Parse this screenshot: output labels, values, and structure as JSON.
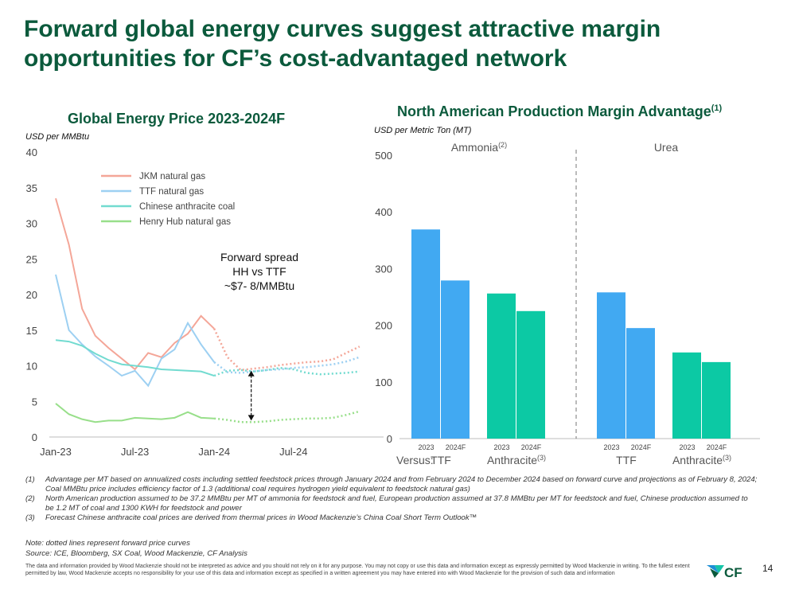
{
  "slide": {
    "title": "Forward global energy curves suggest attractive margin opportunities for CF’s cost-advantaged network",
    "page_number": "14",
    "brand": "CF",
    "colors": {
      "title_green": "#0b5a3c",
      "blue_bar": "#41a9f2",
      "teal_bar": "#0cc9a4",
      "logo_green": "#0b5a3c",
      "logo_blue": "#1d8fd6",
      "logo_teal": "#16c5a8"
    }
  },
  "footnotes": [
    {
      "num": "(1)",
      "text": "Advantage per MT based on annualized costs including settled feedstock prices through January 2024 and from February 2024 to December 2024 based on forward curve and projections as of February 8, 2024; Coal MMBtu price includes efficiency factor of 1.3 (additional coal requires hydrogen yield equivalent to feedstock natural gas)"
    },
    {
      "num": "(2)",
      "text": "North American production assumed to be 37.2 MMBtu per MT of ammonia for feedstock and fuel, European production assumed at 37.8 MMBtu per MT for feedstock and fuel, Chinese production assumed to be 1.2 MT of coal and 1300 KWH for feedstock and power"
    },
    {
      "num": "(3)",
      "text": "Forecast Chinese anthracite coal prices are derived from thermal prices in Wood Mackenzie’s China Coal Short Term Outlook™"
    }
  ],
  "notes": {
    "dotted": "Note: dotted lines represent forward price curves",
    "source": "Source: ICE, Bloomberg, SX Coal, Wood Mackenzie, CF Analysis"
  },
  "disclaimer": "The data and information provided by Wood Mackenzie should not be interpreted as advice and you should not rely on it for any purpose. You may not copy or use this data and information except as expressly permitted by Wood Mackenzie in writing. To the fullest extent permitted by law, Wood Mackenzie accepts no responsibility for your use of this data and information except as specified in a written agreement you may have entered into with Wood Mackenzie for the provision of such data and information",
  "chart_data": [
    {
      "type": "line",
      "title": "Global Energy Price 2023-2024F",
      "ylabel": "USD per MMBtu",
      "ylim": [
        0,
        40
      ],
      "yticks": [
        "0",
        "5",
        "10",
        "15",
        "20",
        "25",
        "30",
        "35",
        "40"
      ],
      "x_tick_labels": [
        {
          "label": "Jan-23",
          "index": 0
        },
        {
          "label": "Jul-23",
          "index": 6
        },
        {
          "label": "Jan-24",
          "index": 12
        },
        {
          "label": "Jul-24",
          "index": 18
        }
      ],
      "months": 24,
      "actual_through_index": 12,
      "series": [
        {
          "name": "JKM natural gas",
          "color": "#f4a698",
          "values": [
            33.5,
            27.0,
            18.0,
            14.2,
            12.5,
            11.0,
            9.5,
            11.8,
            11.2,
            13.2,
            14.5,
            17.0,
            15.2,
            11.2,
            9.4,
            9.6,
            9.8,
            10.1,
            10.3,
            10.5,
            10.6,
            10.9,
            11.8,
            12.7
          ]
        },
        {
          "name": "TTF natural gas",
          "color": "#9dd0f2",
          "values": [
            22.8,
            15.0,
            13.0,
            11.3,
            10.0,
            8.6,
            9.3,
            7.2,
            11.0,
            12.3,
            16.0,
            13.0,
            10.5,
            9.1,
            9.0,
            9.2,
            9.4,
            9.5,
            9.7,
            9.8,
            10.0,
            10.2,
            10.6,
            11.2
          ]
        },
        {
          "name": "Chinese anthracite coal",
          "color": "#72dbd0",
          "values": [
            13.6,
            13.4,
            12.8,
            11.7,
            10.8,
            10.2,
            10.0,
            9.8,
            9.5,
            9.4,
            9.3,
            9.2,
            8.6,
            9.3,
            9.4,
            9.2,
            9.4,
            9.7,
            9.5,
            9.0,
            8.8,
            8.9,
            9.0,
            9.2
          ]
        },
        {
          "name": "Henry Hub natural gas",
          "color": "#98df8a",
          "values": [
            4.7,
            3.2,
            2.5,
            2.1,
            2.3,
            2.3,
            2.7,
            2.6,
            2.5,
            2.7,
            3.5,
            2.7,
            2.6,
            2.4,
            2.1,
            2.1,
            2.2,
            2.4,
            2.5,
            2.6,
            2.6,
            2.7,
            3.1,
            3.6
          ]
        }
      ],
      "annotation": {
        "lines": [
          "Forward spread",
          "HH vs TTF",
          "~$7- 8/MMBtu"
        ],
        "arrow_from": 9.3,
        "arrow_to": 2.3,
        "arrow_index": 14.8
      }
    },
    {
      "type": "bar",
      "title": "North American Production Margin Advantage",
      "title_superscript": "(1)",
      "ylabel": "USD per Metric Ton (MT)",
      "ylim": [
        0,
        500
      ],
      "yticks": [
        "0",
        "100",
        "200",
        "300",
        "400",
        "500"
      ],
      "versus_label": "Versus:",
      "groups": [
        {
          "product": "Ammonia",
          "product_superscript": "(2)",
          "comparisons": [
            {
              "label": "TTF",
              "superscript": "",
              "color": "#41a9f2",
              "bars": [
                {
                  "year": "2023",
                  "value": 369
                },
                {
                  "year": "2024F",
                  "value": 279
                }
              ]
            },
            {
              "label": "Anthracite",
              "superscript": "(3)",
              "color": "#0cc9a4",
              "bars": [
                {
                  "year": "2023",
                  "value": 256
                },
                {
                  "year": "2024F",
                  "value": 225
                }
              ]
            }
          ]
        },
        {
          "product": "Urea",
          "product_superscript": "",
          "comparisons": [
            {
              "label": "TTF",
              "superscript": "",
              "color": "#41a9f2",
              "bars": [
                {
                  "year": "2023",
                  "value": 258
                },
                {
                  "year": "2024F",
                  "value": 195
                }
              ]
            },
            {
              "label": "Anthracite",
              "superscript": "(3)",
              "color": "#0cc9a4",
              "bars": [
                {
                  "year": "2023",
                  "value": 152
                },
                {
                  "year": "2024F",
                  "value": 135
                }
              ]
            }
          ]
        }
      ]
    }
  ]
}
